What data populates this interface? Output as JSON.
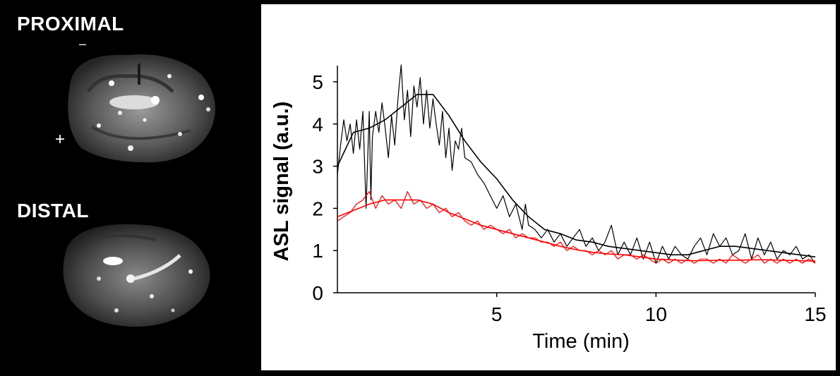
{
  "panels": {
    "proximal_label": "PROXIMAL",
    "distal_label": "DISTAL"
  },
  "markers": {
    "minus": "–",
    "plus": "+"
  },
  "chart_data": {
    "type": "line",
    "xlabel": "Time (min)",
    "ylabel": "ASL signal (a.u.)",
    "xlim": [
      0,
      15
    ],
    "ylim": [
      0,
      5.3
    ],
    "xticks": [
      5,
      10,
      15
    ],
    "yticks": [
      0,
      1,
      2,
      3,
      4,
      5
    ],
    "grid": false,
    "series": [
      {
        "color": "#000000",
        "role": "raw",
        "x": [
          0.0,
          0.1,
          0.2,
          0.3,
          0.4,
          0.5,
          0.6,
          0.7,
          0.8,
          0.9,
          1.0,
          1.05,
          1.1,
          1.2,
          1.3,
          1.4,
          1.5,
          1.6,
          1.7,
          1.8,
          1.9,
          2.0,
          2.1,
          2.2,
          2.3,
          2.4,
          2.5,
          2.6,
          2.7,
          2.8,
          2.9,
          3.0,
          3.1,
          3.2,
          3.3,
          3.4,
          3.5,
          3.6,
          3.7,
          3.8,
          3.9,
          4.0,
          4.2,
          4.4,
          4.6,
          4.8,
          5.0,
          5.2,
          5.4,
          5.6,
          5.8,
          5.9,
          6.0,
          6.2,
          6.4,
          6.6,
          6.8,
          7.0,
          7.2,
          7.4,
          7.6,
          7.8,
          8.0,
          8.2,
          8.4,
          8.6,
          8.8,
          9.0,
          9.2,
          9.4,
          9.6,
          9.8,
          10.0,
          10.2,
          10.4,
          10.6,
          10.8,
          11.0,
          11.2,
          11.4,
          11.6,
          11.8,
          12.0,
          12.2,
          12.4,
          12.6,
          12.8,
          13.0,
          13.2,
          13.4,
          13.6,
          13.8,
          14.0,
          14.2,
          14.4,
          14.6,
          14.8,
          15.0
        ],
        "values": [
          2.8,
          3.5,
          4.1,
          3.6,
          4.0,
          3.3,
          4.1,
          3.4,
          4.3,
          2.0,
          4.3,
          2.2,
          3.7,
          4.3,
          3.8,
          4.5,
          3.9,
          3.2,
          4.2,
          3.5,
          4.6,
          5.4,
          4.1,
          4.8,
          3.7,
          4.9,
          4.4,
          5.1,
          4.0,
          4.8,
          3.9,
          4.6,
          4.0,
          3.5,
          4.3,
          3.2,
          3.9,
          2.9,
          3.6,
          3.4,
          3.9,
          3.2,
          3.1,
          2.8,
          2.6,
          2.3,
          2.0,
          2.3,
          1.8,
          2.1,
          1.5,
          2.1,
          1.6,
          1.5,
          1.3,
          1.5,
          1.2,
          1.4,
          1.1,
          1.3,
          1.5,
          1.1,
          1.3,
          1.0,
          1.2,
          1.6,
          0.9,
          1.2,
          0.9,
          1.3,
          0.8,
          1.2,
          0.7,
          1.1,
          0.8,
          1.1,
          0.9,
          0.8,
          1.1,
          1.3,
          0.9,
          1.4,
          1.1,
          1.3,
          0.9,
          1.0,
          1.4,
          0.8,
          1.3,
          0.9,
          1.2,
          0.8,
          1.0,
          0.9,
          1.1,
          0.8,
          0.9,
          0.7
        ]
      },
      {
        "color": "#000000",
        "role": "smoothed",
        "x": [
          0,
          0.5,
          1.0,
          1.5,
          2.0,
          2.5,
          3.0,
          3.5,
          4.0,
          4.5,
          5.0,
          5.5,
          6.0,
          6.5,
          7.0,
          7.5,
          8.0,
          8.5,
          9.0,
          9.5,
          10.0,
          10.5,
          11.0,
          11.5,
          12.0,
          12.5,
          13.0,
          13.5,
          14.0,
          14.5,
          15.0
        ],
        "values": [
          3.0,
          3.8,
          3.9,
          4.1,
          4.4,
          4.7,
          4.7,
          4.2,
          3.6,
          3.1,
          2.7,
          2.2,
          1.8,
          1.5,
          1.4,
          1.25,
          1.2,
          1.1,
          1.05,
          1.0,
          0.95,
          0.9,
          0.9,
          1.0,
          1.1,
          1.1,
          1.05,
          1.0,
          0.95,
          0.9,
          0.85
        ]
      },
      {
        "color": "#ff0000",
        "role": "raw",
        "x": [
          0.0,
          0.2,
          0.4,
          0.6,
          0.8,
          1.0,
          1.2,
          1.4,
          1.6,
          1.8,
          2.0,
          2.2,
          2.4,
          2.6,
          2.8,
          3.0,
          3.2,
          3.4,
          3.6,
          3.8,
          4.0,
          4.2,
          4.4,
          4.6,
          4.8,
          5.0,
          5.2,
          5.4,
          5.6,
          5.8,
          6.0,
          6.2,
          6.4,
          6.6,
          6.8,
          7.0,
          7.2,
          7.4,
          7.6,
          7.8,
          8.0,
          8.2,
          8.4,
          8.6,
          8.8,
          9.0,
          9.2,
          9.4,
          9.6,
          9.8,
          10.0,
          10.2,
          10.4,
          10.6,
          10.8,
          11.0,
          11.2,
          11.4,
          11.6,
          11.8,
          12.0,
          12.2,
          12.4,
          12.6,
          12.8,
          13.0,
          13.2,
          13.4,
          13.6,
          13.8,
          14.0,
          14.2,
          14.4,
          14.6,
          14.8,
          15.0
        ],
        "values": [
          1.7,
          1.8,
          1.9,
          2.1,
          2.2,
          2.4,
          2.0,
          2.3,
          2.1,
          2.2,
          2.0,
          2.4,
          2.1,
          2.2,
          2.0,
          2.1,
          1.9,
          2.0,
          1.8,
          1.9,
          1.7,
          1.6,
          1.7,
          1.5,
          1.6,
          1.5,
          1.4,
          1.5,
          1.3,
          1.4,
          1.3,
          1.3,
          1.2,
          1.2,
          1.1,
          1.2,
          1.0,
          1.1,
          1.0,
          1.0,
          0.9,
          1.0,
          0.9,
          1.0,
          0.8,
          0.9,
          0.9,
          0.8,
          0.9,
          0.8,
          0.7,
          0.8,
          0.7,
          0.8,
          0.7,
          0.8,
          0.7,
          0.8,
          0.8,
          0.7,
          0.8,
          0.7,
          0.9,
          0.8,
          0.7,
          0.8,
          0.9,
          0.7,
          0.8,
          0.7,
          0.8,
          0.7,
          0.8,
          0.7,
          0.8,
          0.7
        ]
      },
      {
        "color": "#ff0000",
        "role": "smoothed",
        "x": [
          0,
          0.5,
          1.0,
          1.5,
          2.0,
          2.5,
          3.0,
          3.5,
          4.0,
          4.5,
          5.0,
          5.5,
          6.0,
          6.5,
          7.0,
          7.5,
          8.0,
          8.5,
          9.0,
          9.5,
          10.0,
          10.5,
          11.0,
          11.5,
          12.0,
          12.5,
          13.0,
          13.5,
          14.0,
          14.5,
          15.0
        ],
        "values": [
          1.8,
          1.95,
          2.1,
          2.2,
          2.2,
          2.2,
          2.1,
          1.9,
          1.75,
          1.6,
          1.5,
          1.4,
          1.3,
          1.2,
          1.1,
          1.02,
          0.96,
          0.92,
          0.9,
          0.85,
          0.8,
          0.78,
          0.76,
          0.76,
          0.77,
          0.77,
          0.78,
          0.78,
          0.77,
          0.76,
          0.75
        ]
      }
    ]
  }
}
